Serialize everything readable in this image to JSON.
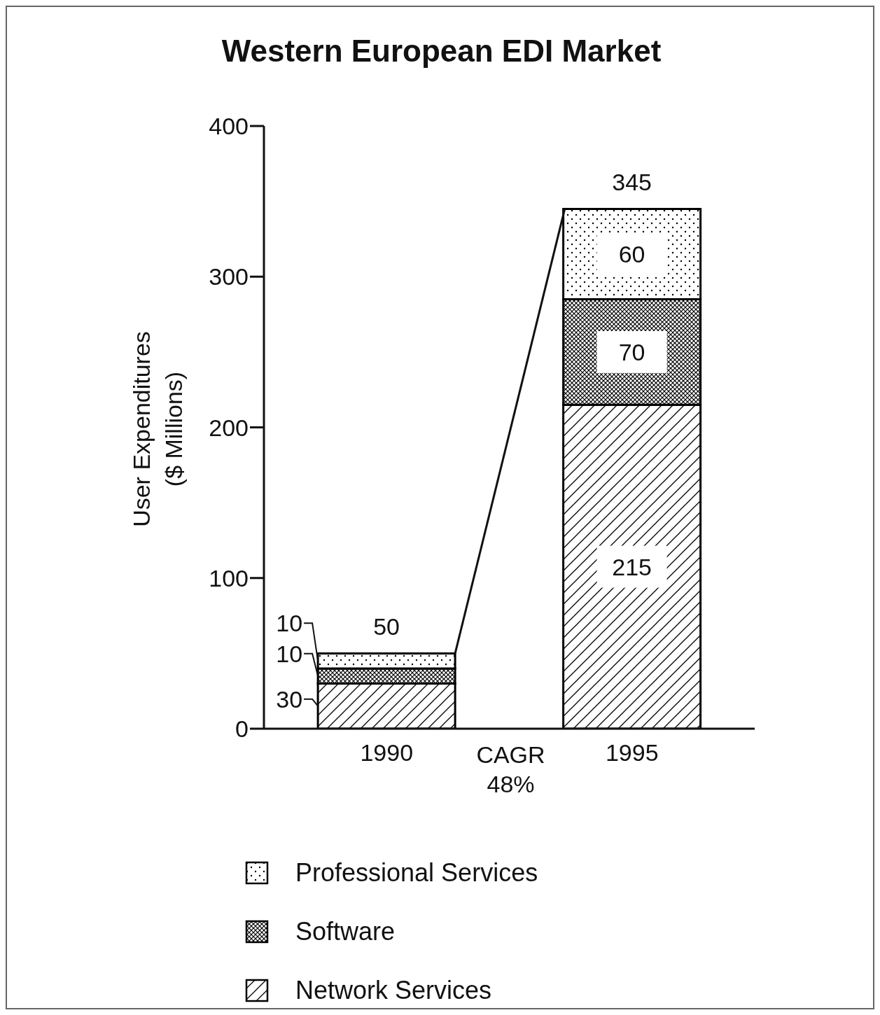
{
  "chart_data": {
    "type": "bar",
    "title": "Western European EDI Market",
    "ylabel": "User Expenditures\n($ Millions)",
    "categories": [
      "1990",
      "1995"
    ],
    "stacked": true,
    "ylim": [
      0,
      400
    ],
    "yticks": [
      0,
      100,
      200,
      300,
      400
    ],
    "legend": "bottom",
    "data_labels": true,
    "totals": [
      "50",
      "345"
    ],
    "annotations": [
      "CAGR\n48%"
    ],
    "series": [
      {
        "name": "Network Services",
        "color": "#000000",
        "values": [
          30,
          215
        ]
      },
      {
        "name": "Software",
        "color": "#000000",
        "values": [
          10,
          70
        ]
      },
      {
        "name": "Professional Services",
        "color": "#000000",
        "values": [
          10,
          60
        ]
      }
    ]
  }
}
